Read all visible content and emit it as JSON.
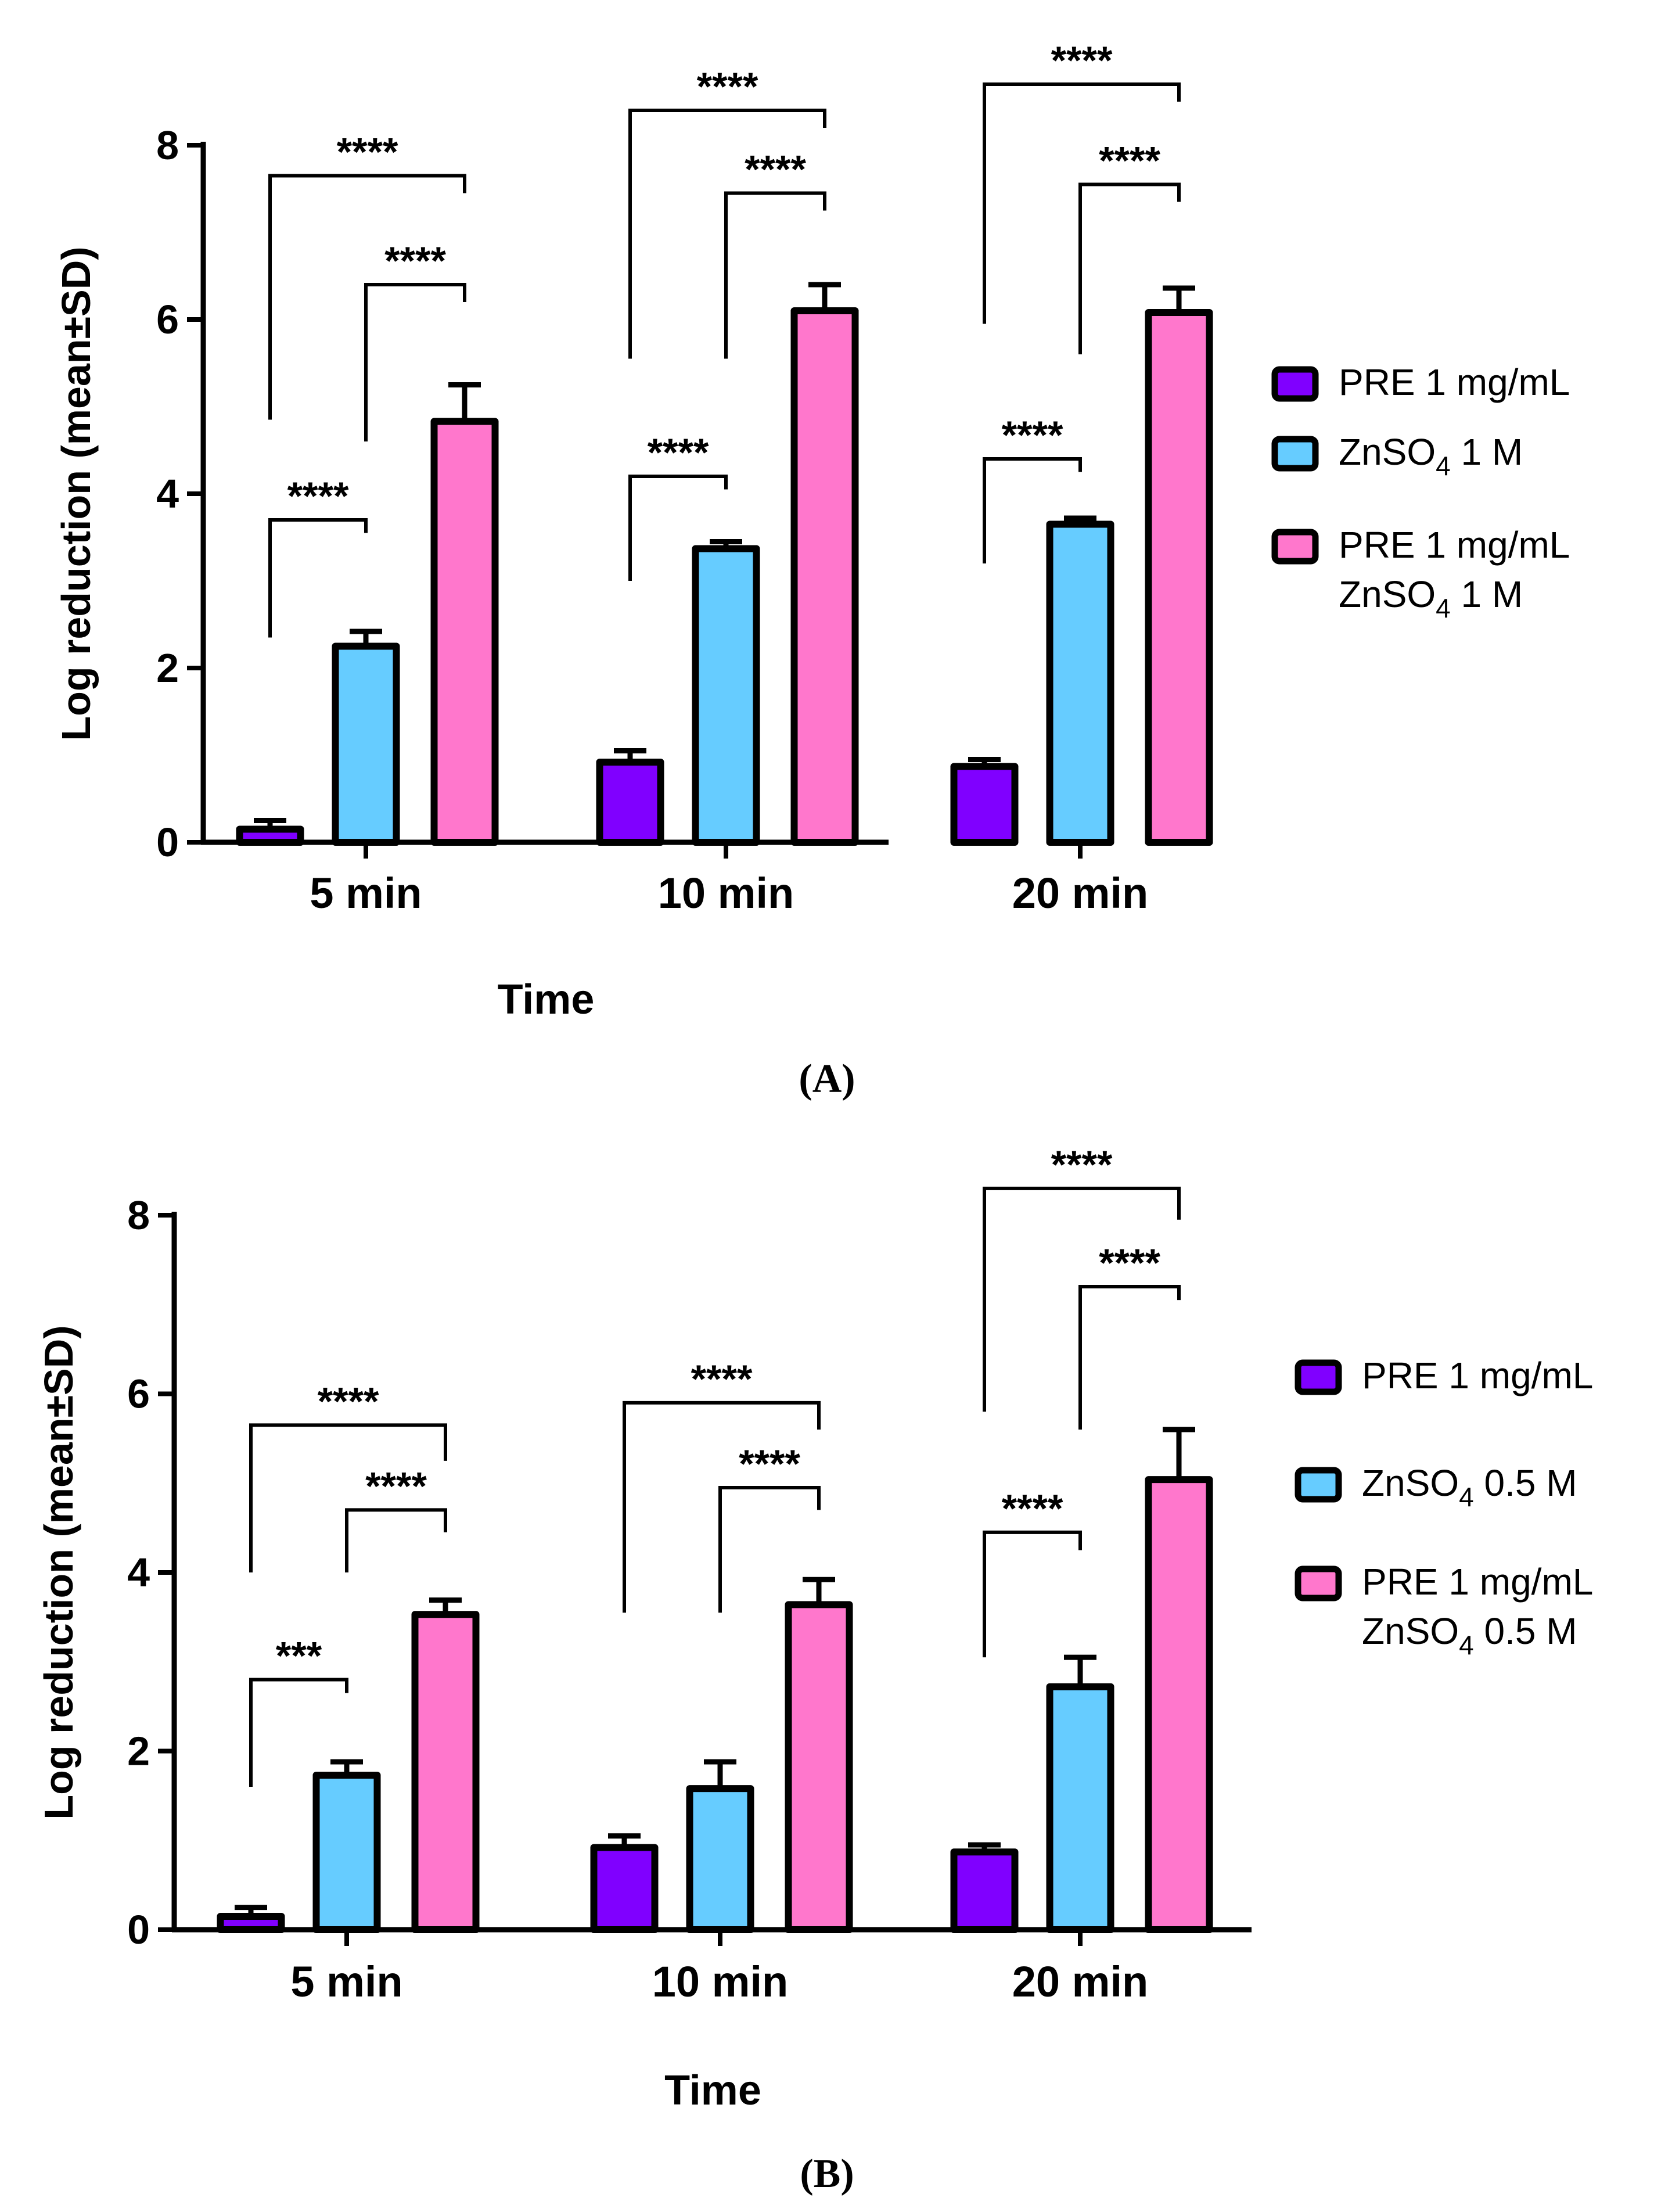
{
  "chart_data": [
    {
      "type": "bar",
      "panel_label": "(A)",
      "title": "",
      "xlabel": "Time",
      "ylabel": "Log reduction (mean±SD)",
      "ylim": [
        0,
        8
      ],
      "yticks": [
        "0",
        "2",
        "4",
        "6",
        "8"
      ],
      "categories": [
        "5 min",
        "10 min",
        "20 min"
      ],
      "series": [
        {
          "name": "PRE 1 mg/mL",
          "legend": [
            "PRE 1 mg/mL"
          ],
          "color": "#8000FF",
          "values": [
            0.15,
            0.92,
            0.87
          ],
          "errors": [
            0.1,
            0.13,
            0.08
          ]
        },
        {
          "name": "ZnSO4 1 M",
          "legend": [
            "ZnSO",
            "4",
            " 1 M"
          ],
          "color": "#66CCFF",
          "values": [
            2.25,
            3.37,
            3.65
          ],
          "errors": [
            0.17,
            0.08,
            0.07
          ]
        },
        {
          "name": "PRE 1 mg/mL ZnSO4 1 M",
          "legend": [
            "PRE 1 mg/mL",
            "ZnSO",
            "4",
            " 1 M"
          ],
          "color": "#FF77CC",
          "values": [
            4.83,
            6.1,
            6.08
          ],
          "errors": [
            0.42,
            0.3,
            0.28
          ]
        }
      ],
      "significance": [
        {
          "category": 0,
          "from": 0,
          "to": 1,
          "label": "****",
          "ybar": 3.7,
          "yleft": 2.35,
          "yright": 3.55
        },
        {
          "category": 0,
          "from": 1,
          "to": 2,
          "label": "****",
          "ybar": 6.4,
          "yleft": 4.6,
          "yright": 6.2
        },
        {
          "category": 0,
          "from": 0,
          "to": 2,
          "label": "****",
          "ybar": 7.65,
          "yleft": 4.85,
          "yright": 7.45
        },
        {
          "category": 1,
          "from": 0,
          "to": 1,
          "label": "****",
          "ybar": 4.2,
          "yleft": 3.0,
          "yright": 4.05
        },
        {
          "category": 1,
          "from": 1,
          "to": 2,
          "label": "****",
          "ybar": 7.45,
          "yleft": 5.55,
          "yright": 7.25
        },
        {
          "category": 1,
          "from": 0,
          "to": 2,
          "label": "****",
          "ybar": 8.4,
          "yleft": 5.55,
          "yright": 8.2
        },
        {
          "category": 2,
          "from": 0,
          "to": 1,
          "label": "****",
          "ybar": 4.4,
          "yleft": 3.2,
          "yright": 4.25
        },
        {
          "category": 2,
          "from": 1,
          "to": 2,
          "label": "****",
          "ybar": 7.55,
          "yleft": 5.6,
          "yright": 7.35
        },
        {
          "category": 2,
          "from": 0,
          "to": 2,
          "label": "****",
          "ybar": 8.7,
          "yleft": 5.95,
          "yright": 8.5
        }
      ]
    },
    {
      "type": "bar",
      "panel_label": "(B)",
      "title": "",
      "xlabel": "Time",
      "ylabel": "Log reduction (mean±SD)",
      "ylim": [
        0,
        8
      ],
      "yticks": [
        "0",
        "2",
        "4",
        "6",
        "8"
      ],
      "categories": [
        "5 min",
        "10 min",
        "20 min"
      ],
      "series": [
        {
          "name": "PRE 1 mg/mL",
          "legend": [
            "PRE 1 mg/mL"
          ],
          "color": "#8000FF",
          "values": [
            0.15,
            0.92,
            0.87
          ],
          "errors": [
            0.1,
            0.13,
            0.08
          ]
        },
        {
          "name": "ZnSO4 0.5 M",
          "legend": [
            "ZnSO",
            "4",
            " 0.5 M"
          ],
          "color": "#66CCFF",
          "values": [
            1.73,
            1.58,
            2.72
          ],
          "errors": [
            0.15,
            0.3,
            0.33
          ]
        },
        {
          "name": "PRE 1 mg/mL ZnSO4 0.5 M",
          "legend": [
            "PRE 1 mg/mL",
            "ZnSO",
            "4",
            " 0.5 M"
          ],
          "color": "#FF77CC",
          "values": [
            3.53,
            3.64,
            5.04
          ],
          "errors": [
            0.16,
            0.28,
            0.56
          ]
        }
      ],
      "significance": [
        {
          "category": 0,
          "from": 0,
          "to": 1,
          "label": "***",
          "ybar": 2.8,
          "yleft": 1.6,
          "yright": 2.65
        },
        {
          "category": 0,
          "from": 1,
          "to": 2,
          "label": "****",
          "ybar": 4.7,
          "yleft": 4.0,
          "yright": 4.45
        },
        {
          "category": 0,
          "from": 0,
          "to": 2,
          "label": "****",
          "ybar": 5.65,
          "yleft": 4.0,
          "yright": 5.25
        },
        {
          "category": 1,
          "from": 1,
          "to": 2,
          "label": "****",
          "ybar": 4.95,
          "yleft": 3.55,
          "yright": 4.7
        },
        {
          "category": 1,
          "from": 0,
          "to": 2,
          "label": "****",
          "ybar": 5.9,
          "yleft": 3.55,
          "yright": 5.6
        },
        {
          "category": 2,
          "from": 0,
          "to": 1,
          "label": "****",
          "ybar": 4.45,
          "yleft": 3.05,
          "yright": 4.25
        },
        {
          "category": 2,
          "from": 1,
          "to": 2,
          "label": "****",
          "ybar": 7.2,
          "yleft": 5.6,
          "yright": 7.05
        },
        {
          "category": 2,
          "from": 0,
          "to": 2,
          "label": "****",
          "ybar": 8.3,
          "yleft": 5.8,
          "yright": 7.95
        }
      ]
    }
  ]
}
